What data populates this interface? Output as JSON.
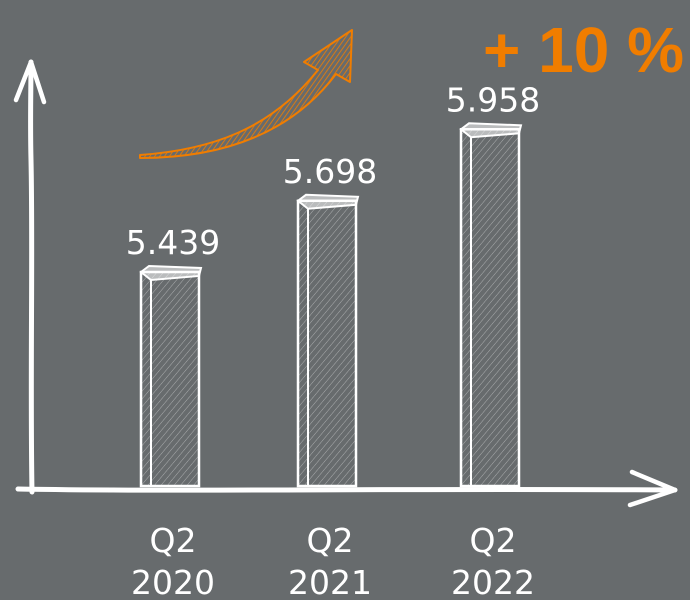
{
  "chart_data": {
    "type": "bar",
    "categories": [
      [
        "Q2",
        "2020"
      ],
      [
        "Q2",
        "2021"
      ],
      [
        "Q2",
        "2022"
      ]
    ],
    "values": [
      5.439,
      5.698,
      5.958
    ],
    "value_labels": [
      "5.439",
      "5.698",
      "5.958"
    ],
    "title": "",
    "xlabel": "",
    "ylabel": "",
    "ylim": [
      0,
      6.5
    ],
    "grid": false,
    "annotation": {
      "text": "+ 10 %",
      "color": "#f07d00"
    }
  },
  "colors": {
    "background": "#676b6d",
    "chalk": "#ffffff",
    "accent": "#f07d00"
  },
  "icons": {
    "trend": "upward-trend-arrow-icon"
  }
}
